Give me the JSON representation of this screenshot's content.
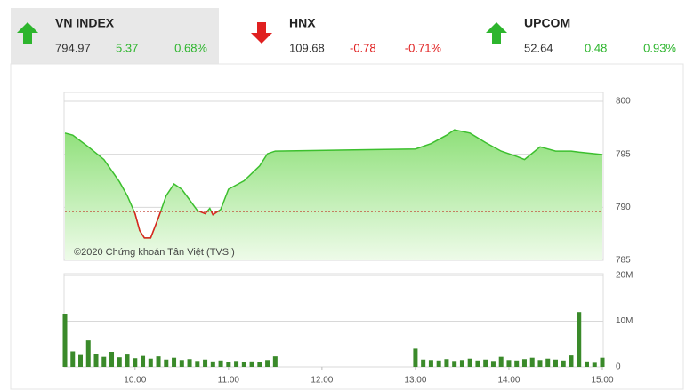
{
  "tiles": [
    {
      "name": "VN INDEX",
      "value": "794.97",
      "change": "5.37",
      "percent": "0.68%",
      "direction": "up"
    },
    {
      "name": "HNX",
      "value": "109.68",
      "change": "-0.78",
      "percent": "-0.71%",
      "direction": "down"
    },
    {
      "name": "UPCOM",
      "value": "52.64",
      "change": "0.48",
      "percent": "0.93%",
      "direction": "up"
    }
  ],
  "up_color": "#2db52d",
  "down_color": "#e02020",
  "chart_data": [
    {
      "type": "area",
      "annotation": "©2020 Chứng khoán Tân Việt (TVSI)",
      "x": [
        555,
        560,
        570,
        580,
        590,
        595,
        600,
        603,
        606,
        610,
        615,
        620,
        625,
        630,
        635,
        640,
        645,
        648,
        650,
        655,
        660,
        670,
        680,
        685,
        690,
        780,
        790,
        800,
        805,
        815,
        825,
        835,
        845,
        850,
        860,
        870,
        880,
        885,
        900
      ],
      "values": [
        797.0,
        796.8,
        795.7,
        794.5,
        792.4,
        791.1,
        789.4,
        787.8,
        787.1,
        787.1,
        789.0,
        791.1,
        792.2,
        791.7,
        790.7,
        789.7,
        789.4,
        789.9,
        789.3,
        789.8,
        791.7,
        792.5,
        793.9,
        795.05,
        795.3,
        795.5,
        796.0,
        796.8,
        797.3,
        797.0,
        796.1,
        795.3,
        794.8,
        794.5,
        795.7,
        795.3,
        795.3,
        795.2,
        794.97
      ],
      "color": "#3cbf2e",
      "below_color": "#e02020",
      "reference": 789.6,
      "xlim": [
        555,
        900
      ],
      "ylim": [
        785,
        800
      ],
      "yticks": [
        785,
        790,
        795,
        800
      ],
      "grid": true
    },
    {
      "type": "bar",
      "x": [
        555,
        560,
        565,
        570,
        575,
        580,
        585,
        590,
        595,
        600,
        605,
        610,
        615,
        620,
        625,
        630,
        635,
        640,
        645,
        650,
        655,
        660,
        665,
        670,
        675,
        680,
        685,
        690,
        780,
        785,
        790,
        795,
        800,
        805,
        810,
        815,
        820,
        825,
        830,
        835,
        840,
        845,
        850,
        855,
        860,
        865,
        870,
        875,
        880,
        885,
        890,
        895,
        900
      ],
      "values": [
        11500000,
        3400000,
        2600000,
        5800000,
        2900000,
        2200000,
        3300000,
        2100000,
        2700000,
        1900000,
        2400000,
        1800000,
        2300000,
        1600000,
        2000000,
        1500000,
        1700000,
        1300000,
        1600000,
        1200000,
        1400000,
        1100000,
        1300000,
        1000000,
        1200000,
        1100000,
        1500000,
        2300000,
        4000000,
        1600000,
        1500000,
        1400000,
        1700000,
        1300000,
        1500000,
        1800000,
        1400000,
        1600000,
        1300000,
        2200000,
        1500000,
        1400000,
        1700000,
        2000000,
        1500000,
        1800000,
        1600000,
        1400000,
        2500000,
        12000000,
        1200000,
        900000,
        2000000
      ],
      "color": "#3a8a2a",
      "xlim": [
        555,
        900
      ],
      "ylim": [
        0,
        20000000
      ],
      "yticks": [
        0,
        {
          "value": 10000000,
          "label": "10M"
        },
        {
          "value": 20000000,
          "label": "20M"
        }
      ],
      "xticks": [
        {
          "value": 600,
          "label": "10:00"
        },
        {
          "value": 660,
          "label": "11:00"
        },
        {
          "value": 720,
          "label": "12:00"
        },
        {
          "value": 780,
          "label": "13:00"
        },
        {
          "value": 840,
          "label": "14:00"
        },
        {
          "value": 900,
          "label": "15:00"
        }
      ]
    }
  ]
}
